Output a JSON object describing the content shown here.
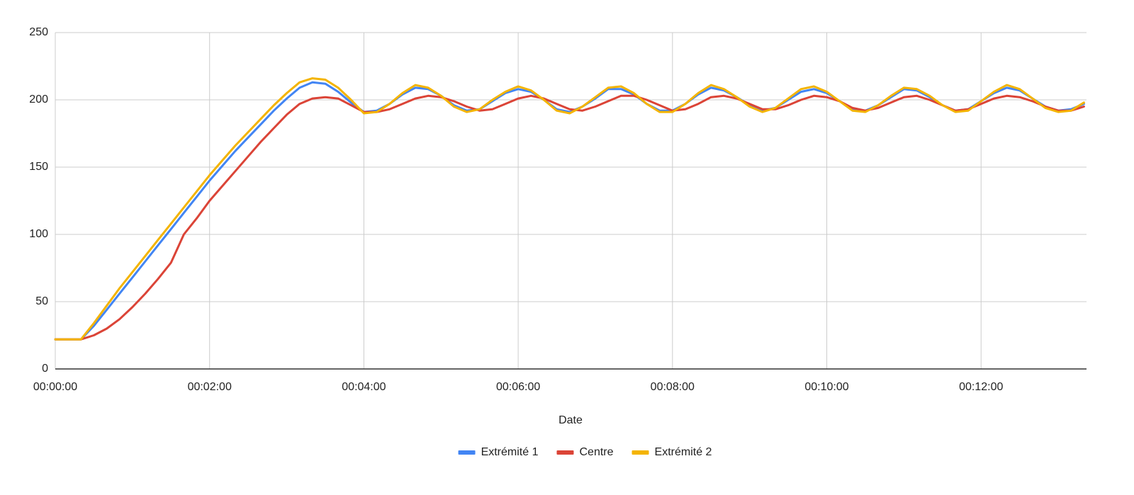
{
  "chart_data": {
    "type": "line",
    "x_label": "Date",
    "x": [
      0,
      10,
      20,
      30,
      40,
      50,
      60,
      70,
      80,
      90,
      100,
      110,
      120,
      130,
      140,
      150,
      160,
      170,
      180,
      190,
      200,
      210,
      220,
      230,
      240,
      250,
      260,
      270,
      280,
      290,
      300,
      310,
      320,
      330,
      340,
      350,
      360,
      370,
      380,
      390,
      400,
      410,
      420,
      430,
      440,
      450,
      460,
      470,
      480,
      490,
      500,
      510,
      520,
      530,
      540,
      550,
      560,
      570,
      580,
      590,
      600,
      610,
      620,
      630,
      640,
      650,
      660,
      670,
      680,
      690,
      700,
      710,
      720,
      730,
      740,
      750,
      760,
      770,
      780,
      790,
      800
    ],
    "series": [
      {
        "name": "Extrémité 1",
        "color": "#4285f4",
        "values": [
          22,
          22,
          22,
          32,
          44,
          56,
          68,
          80,
          92,
          104,
          116,
          128,
          140,
          151,
          162,
          172,
          182,
          192,
          201,
          209,
          213,
          212,
          206,
          198,
          191,
          192,
          197,
          204,
          209,
          208,
          203,
          196,
          192,
          193,
          199,
          205,
          208,
          206,
          200,
          193,
          191,
          195,
          201,
          208,
          208,
          204,
          197,
          192,
          192,
          197,
          204,
          209,
          207,
          202,
          196,
          192,
          194,
          200,
          206,
          208,
          205,
          199,
          193,
          192,
          196,
          202,
          208,
          207,
          202,
          196,
          192,
          193,
          199,
          205,
          209,
          207,
          201,
          195,
          192,
          193,
          197
        ]
      },
      {
        "name": "Centre",
        "color": "#db4437",
        "values": [
          22,
          22,
          22,
          25,
          30,
          37,
          46,
          56,
          67,
          79,
          100,
          112,
          125,
          136,
          147,
          158,
          169,
          179,
          189,
          197,
          201,
          202,
          201,
          196,
          191,
          191,
          193,
          197,
          201,
          203,
          202,
          199,
          195,
          192,
          193,
          197,
          201,
          203,
          201,
          197,
          193,
          192,
          195,
          199,
          203,
          203,
          200,
          196,
          192,
          193,
          197,
          202,
          203,
          201,
          197,
          193,
          193,
          196,
          200,
          203,
          202,
          199,
          194,
          192,
          194,
          198,
          202,
          203,
          200,
          196,
          192,
          193,
          197,
          201,
          203,
          202,
          199,
          195,
          192,
          192,
          195
        ]
      },
      {
        "name": "Extrémité 2",
        "color": "#f4b400",
        "values": [
          22,
          22,
          22,
          34,
          47,
          60,
          72,
          84,
          96,
          108,
          120,
          132,
          144,
          155,
          166,
          176,
          186,
          196,
          205,
          213,
          216,
          215,
          209,
          200,
          190,
          191,
          197,
          205,
          211,
          209,
          203,
          195,
          191,
          193,
          200,
          206,
          210,
          207,
          200,
          192,
          190,
          195,
          202,
          209,
          210,
          205,
          197,
          191,
          191,
          197,
          205,
          211,
          208,
          202,
          195,
          191,
          194,
          201,
          208,
          210,
          206,
          199,
          192,
          191,
          196,
          203,
          209,
          208,
          203,
          196,
          191,
          192,
          199,
          206,
          211,
          208,
          201,
          194,
          191,
          192,
          198
        ]
      }
    ],
    "xlim": [
      0,
      802
    ],
    "xticks": [
      {
        "value": 0,
        "label": "00:00:00"
      },
      {
        "value": 120,
        "label": "00:02:00"
      },
      {
        "value": 240,
        "label": "00:04:00"
      },
      {
        "value": 360,
        "label": "00:06:00"
      },
      {
        "value": 480,
        "label": "00:08:00"
      },
      {
        "value": 600,
        "label": "00:10:00"
      },
      {
        "value": 720,
        "label": "00:12:00"
      }
    ],
    "ylim": [
      0,
      250
    ],
    "yticks": [
      0,
      50,
      100,
      150,
      200,
      250
    ],
    "grid": true,
    "legend": "bottom"
  }
}
